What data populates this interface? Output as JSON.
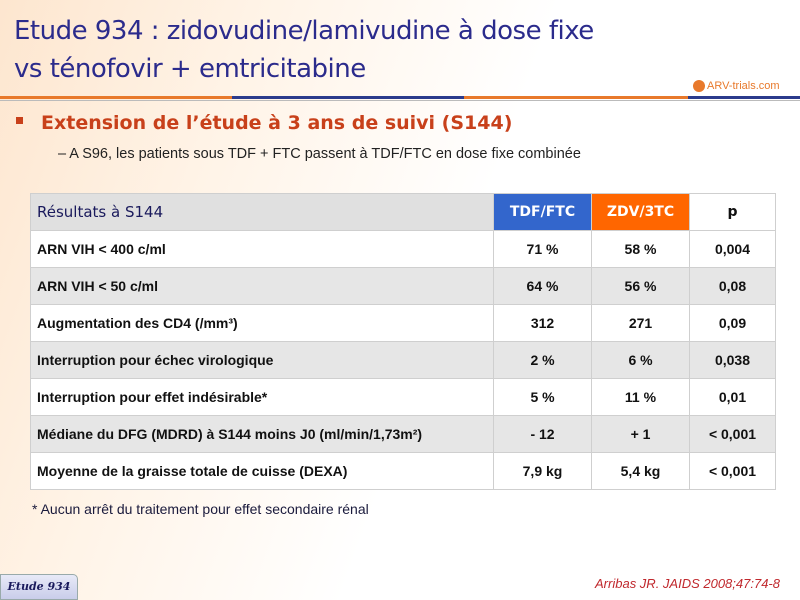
{
  "title": {
    "line1": "Etude 934 : zidovudine/lamivudine à dose fixe",
    "line2": "vs ténofovir + emtricitabine"
  },
  "logo": {
    "text": "ARV-trials.com"
  },
  "bullet": "Extension de l’étude à 3 ans de suivi (S144)",
  "sub_bullet": "–  A S96, les patients sous TDF + FTC passent à TDF/FTC en dose fixe combinée",
  "table": {
    "headers": [
      "Résultats à S144",
      "TDF/FTC",
      "ZDV/3TC",
      "p"
    ],
    "rows": [
      [
        "ARN VIH < 400 c/ml",
        "71 %",
        "58 %",
        "0,004"
      ],
      [
        "ARN VIH < 50 c/ml",
        "64 %",
        "56 %",
        "0,08"
      ],
      [
        "Augmentation des CD4 (/mm³)",
        "312",
        "271",
        "0,09"
      ],
      [
        "Interruption pour échec virologique",
        "2 %",
        "6 %",
        "0,038"
      ],
      [
        "Interruption pour effet indésirable*",
        "5 %",
        "11 %",
        "0,01"
      ],
      [
        "Médiane du DFG (MDRD) à S144 moins J0 (ml/min/1,73m²)",
        "- 12",
        "+ 1",
        "< 0,001"
      ],
      [
        "Moyenne de la graisse totale de cuisse (DEXA)",
        "7,9 kg",
        "5,4 kg",
        "< 0,001"
      ]
    ]
  },
  "footnote": "* Aucun arrêt du traitement pour effet secondaire rénal",
  "study_tag": "Etude 934",
  "reference": "Arribas JR. JAIDS 2008;47:74-8",
  "colors": {
    "title": "#2b2b8c",
    "accent": "#c8401a",
    "tdf": "#3366cc",
    "zdv": "#ff6600"
  }
}
